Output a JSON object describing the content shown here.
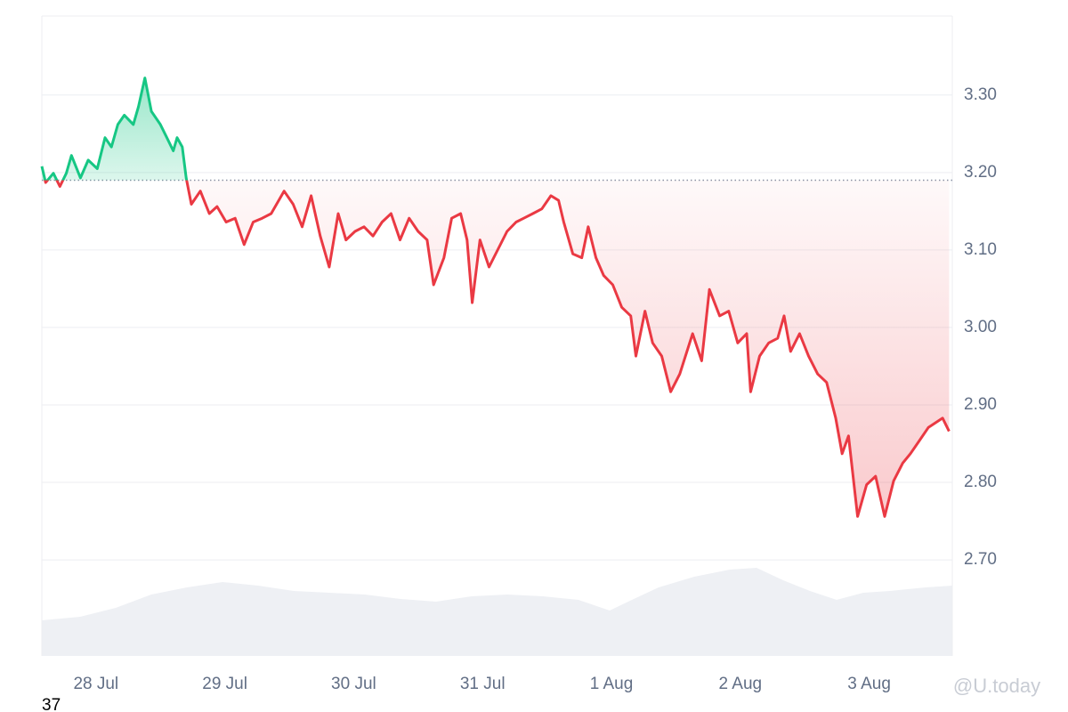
{
  "chart_data": {
    "type": "line",
    "x": [
      -0.42,
      -0.39,
      -0.33,
      -0.28,
      -0.23,
      -0.19,
      -0.12,
      -0.06,
      0.01,
      0.07,
      0.12,
      0.17,
      0.22,
      0.29,
      0.33,
      0.38,
      0.43,
      0.5,
      0.55,
      0.6,
      0.63,
      0.67,
      0.7,
      0.74,
      0.81,
      0.88,
      0.94,
      1.01,
      1.08,
      1.15,
      1.22,
      1.29,
      1.36,
      1.46,
      1.53,
      1.6,
      1.67,
      1.74,
      1.81,
      1.88,
      1.94,
      2.01,
      2.08,
      2.15,
      2.22,
      2.29,
      2.36,
      2.43,
      2.5,
      2.57,
      2.62,
      2.7,
      2.76,
      2.83,
      2.88,
      2.92,
      2.98,
      3.05,
      3.12,
      3.19,
      3.26,
      3.32,
      3.39,
      3.46,
      3.53,
      3.59,
      3.63,
      3.7,
      3.77,
      3.82,
      3.88,
      3.94,
      4.01,
      4.08,
      4.15,
      4.19,
      4.26,
      4.32,
      4.39,
      4.46,
      4.53,
      4.63,
      4.7,
      4.76,
      4.84,
      4.91,
      4.98,
      5.05,
      5.08,
      5.15,
      5.22,
      5.29,
      5.34,
      5.39,
      5.46,
      5.53,
      5.6,
      5.67,
      5.74,
      5.79,
      5.84,
      5.91,
      5.98,
      6.05,
      6.12,
      6.19,
      6.26,
      6.32,
      6.39,
      6.46,
      6.57,
      6.62
    ],
    "values": [
      3.208,
      3.187,
      3.199,
      3.182,
      3.199,
      3.222,
      3.193,
      3.216,
      3.205,
      3.245,
      3.233,
      3.262,
      3.274,
      3.262,
      3.285,
      3.322,
      3.279,
      3.262,
      3.245,
      3.228,
      3.245,
      3.233,
      3.193,
      3.159,
      3.176,
      3.147,
      3.156,
      3.136,
      3.141,
      3.107,
      3.136,
      3.141,
      3.147,
      3.176,
      3.159,
      3.13,
      3.17,
      3.118,
      3.078,
      3.147,
      3.113,
      3.124,
      3.13,
      3.118,
      3.136,
      3.147,
      3.113,
      3.141,
      3.124,
      3.113,
      3.055,
      3.09,
      3.141,
      3.147,
      3.113,
      3.032,
      3.113,
      3.078,
      3.101,
      3.124,
      3.136,
      3.141,
      3.147,
      3.153,
      3.17,
      3.164,
      3.136,
      3.095,
      3.09,
      3.13,
      3.09,
      3.067,
      3.055,
      3.026,
      3.015,
      2.963,
      3.021,
      2.98,
      2.963,
      2.917,
      2.94,
      2.992,
      2.957,
      3.049,
      3.015,
      3.021,
      2.98,
      2.992,
      2.917,
      2.963,
      2.98,
      2.986,
      3.015,
      2.969,
      2.992,
      2.963,
      2.94,
      2.929,
      2.883,
      2.837,
      2.86,
      2.756,
      2.797,
      2.808,
      2.756,
      2.802,
      2.825,
      2.837,
      2.854,
      2.871,
      2.883,
      2.866
    ],
    "baseline": 3.19,
    "up_color": "#16c784",
    "down_color": "#ea3943",
    "xlim": [
      -0.42,
      6.645
    ],
    "xticks": [
      {
        "value": 0,
        "label": "28 Jul"
      },
      {
        "value": 1,
        "label": "29 Jul"
      },
      {
        "value": 2,
        "label": "30 Jul"
      },
      {
        "value": 3,
        "label": "31 Jul"
      },
      {
        "value": 4,
        "label": "1 Aug"
      },
      {
        "value": 5,
        "label": "2 Aug"
      },
      {
        "value": 6,
        "label": "3 Aug"
      }
    ],
    "ylim": [
      2.576,
      3.402
    ],
    "yticks": [
      {
        "value": 2.7,
        "label": "2.70"
      },
      {
        "value": 2.8,
        "label": "2.80"
      },
      {
        "value": 2.9,
        "label": "2.90"
      },
      {
        "value": 3.0,
        "label": "3.00"
      },
      {
        "value": 3.1,
        "label": "3.10"
      },
      {
        "value": 3.2,
        "label": "3.20"
      },
      {
        "value": 3.3,
        "label": "3.30"
      }
    ],
    "grid": true,
    "footnote": "37",
    "watermark": "@U.today"
  }
}
